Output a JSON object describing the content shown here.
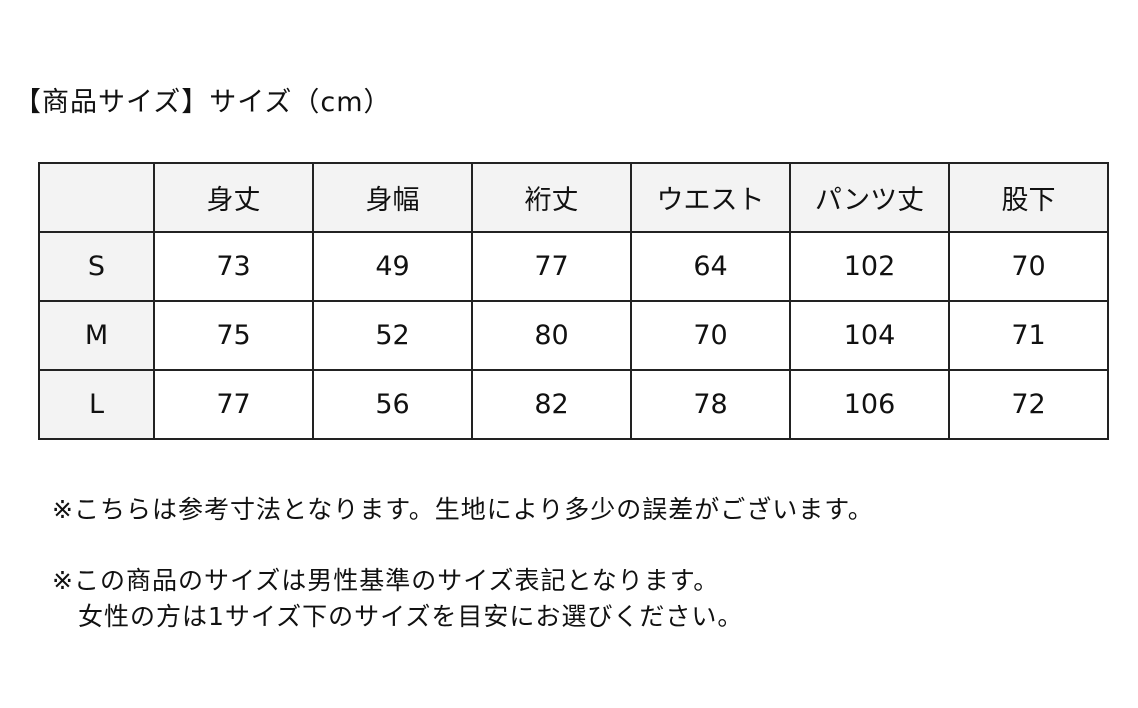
{
  "title": "【商品サイズ】サイズ（cm）",
  "table": {
    "headers": [
      "",
      "身丈",
      "身幅",
      "裄丈",
      "ウエスト",
      "パンツ丈",
      "股下"
    ],
    "rows": [
      {
        "size": "S",
        "values": [
          "73",
          "49",
          "77",
          "64",
          "102",
          "70"
        ]
      },
      {
        "size": "M",
        "values": [
          "75",
          "52",
          "80",
          "70",
          "104",
          "71"
        ]
      },
      {
        "size": "L",
        "values": [
          "77",
          "56",
          "82",
          "78",
          "106",
          "72"
        ]
      }
    ]
  },
  "notes": [
    "※こちらは参考寸法となります。生地により多少の誤差がございます。",
    "※この商品のサイズは男性基準のサイズ表記となります。",
    "　女性の方は1サイズ下のサイズを目安にお選びください。"
  ]
}
